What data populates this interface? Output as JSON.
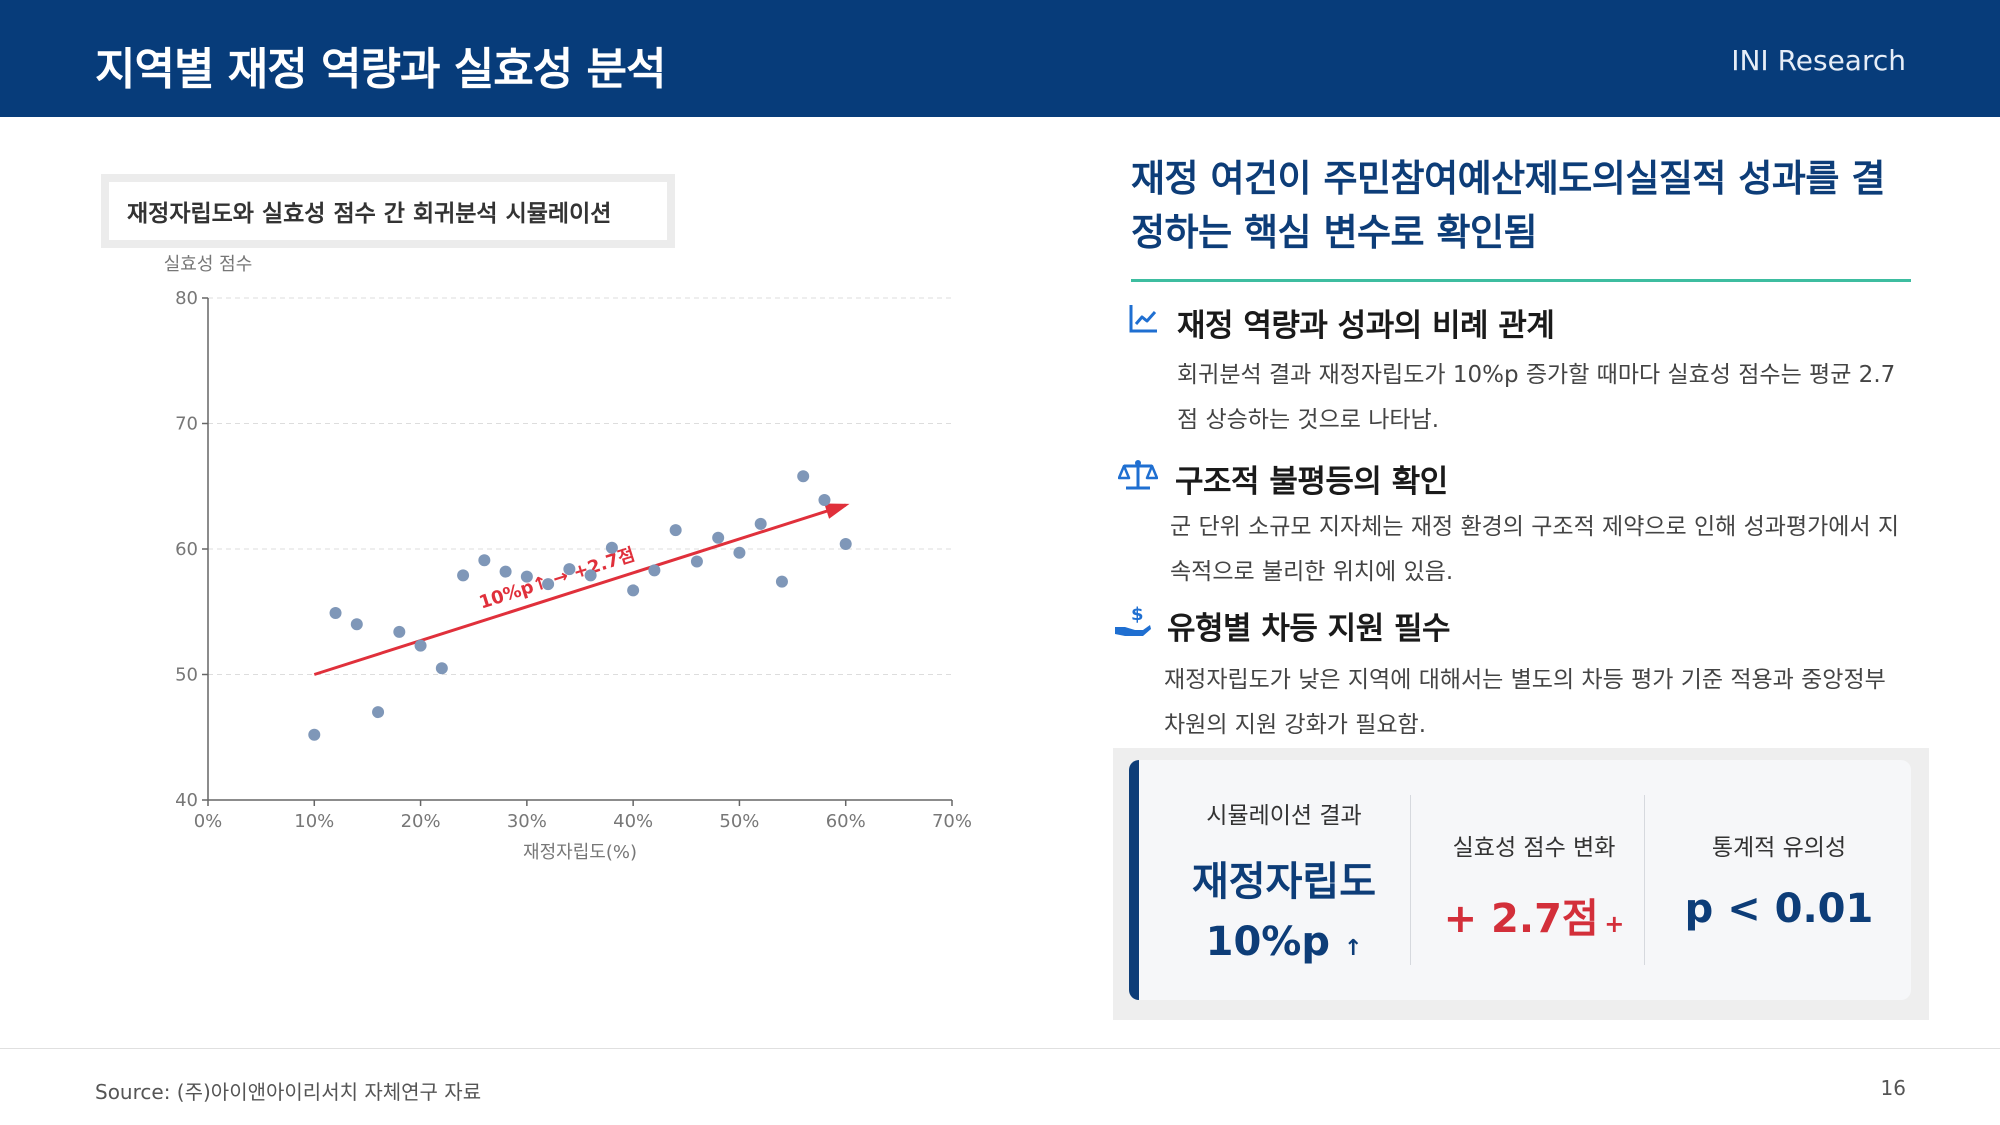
{
  "header": {
    "title": "지역별 재정 역량과 실효성 분석",
    "brand": "INI Research"
  },
  "chart_caption": "재정자립도와 실효성 점수 간 회귀분석 시뮬레이션",
  "chart_data": {
    "type": "scatter",
    "title": "재정자립도와 실효성 점수 간 회귀분석 시뮬레이션",
    "xlabel": "재정자립도(%)",
    "ylabel": "실효성 점수",
    "xlim": [
      0,
      70
    ],
    "ylim": [
      40,
      80
    ],
    "xticks": [
      "0%",
      "10%",
      "20%",
      "30%",
      "40%",
      "50%",
      "60%",
      "70%"
    ],
    "yticks": [
      "40",
      "50",
      "60",
      "70",
      "80"
    ],
    "grid": "horizontal dashed",
    "points": [
      {
        "x": 10,
        "y": 45.2
      },
      {
        "x": 12,
        "y": 54.9
      },
      {
        "x": 14,
        "y": 54.0
      },
      {
        "x": 16,
        "y": 47.0
      },
      {
        "x": 18,
        "y": 53.4
      },
      {
        "x": 20,
        "y": 52.3
      },
      {
        "x": 22,
        "y": 50.5
      },
      {
        "x": 24,
        "y": 57.9
      },
      {
        "x": 26,
        "y": 59.1
      },
      {
        "x": 28,
        "y": 58.2
      },
      {
        "x": 30,
        "y": 57.8
      },
      {
        "x": 32,
        "y": 57.2
      },
      {
        "x": 34,
        "y": 58.4
      },
      {
        "x": 36,
        "y": 57.9
      },
      {
        "x": 38,
        "y": 60.1
      },
      {
        "x": 40,
        "y": 56.7
      },
      {
        "x": 42,
        "y": 58.3
      },
      {
        "x": 44,
        "y": 61.5
      },
      {
        "x": 46,
        "y": 59.0
      },
      {
        "x": 48,
        "y": 60.9
      },
      {
        "x": 50,
        "y": 59.7
      },
      {
        "x": 52,
        "y": 62.0
      },
      {
        "x": 54,
        "y": 57.4
      },
      {
        "x": 56,
        "y": 65.8
      },
      {
        "x": 58,
        "y": 63.9
      },
      {
        "x": 60,
        "y": 60.4
      }
    ],
    "trend": {
      "x_start": 10,
      "y_start": 50,
      "x_end": 60,
      "y_end": 63.5
    },
    "annotation": "10%p↑ → +2.7점",
    "colors": {
      "points": "#7f97b8",
      "trend": "#e0303b",
      "grid": "#dddddd"
    }
  },
  "headline": "재정 여건이 주민참여예산제도의실질적 성과를 결정하는 핵심 변수로 확인됨",
  "points": [
    {
      "icon": "chart-line-icon",
      "title": "재정 역량과 성과의 비례 관계",
      "body": "회귀분석 결과 재정자립도가 10%p 증가할 때마다 실효성 점수는 평균 2.7점 상승하는 것으로 나타남."
    },
    {
      "icon": "balance-scale-icon",
      "title": "구조적 불평등의 확인",
      "body": "군 단위 소규모 지자체는 재정 환경의 구조적 제약으로 인해 성과평가에서 지속적으로 불리한 위치에 있음."
    },
    {
      "icon": "hand-money-icon",
      "title": "유형별 차등 지원 필수",
      "body": "재정자립도가 낮은 지역에 대해서는 별도의 차등 평가 기준 적용과 중앙정부 차원의 지원 강화가 필요함."
    }
  ],
  "stats": {
    "sim_label": "시뮬레이션 결과",
    "sim_value_line1": "재정자립도",
    "sim_value_line2": "10%p",
    "sim_arrow": "↑",
    "change_label": "실효성 점수 변화",
    "change_value": "+ 2.7점",
    "change_plus": "+",
    "sig_label": "통계적 유의성",
    "sig_value": "p < 0.01",
    "accent": "#d32f3a",
    "primary": "#0d3d78"
  },
  "footer": {
    "source": "Source: (주)아이앤아이리서치 자체연구 자료",
    "page": "16"
  }
}
